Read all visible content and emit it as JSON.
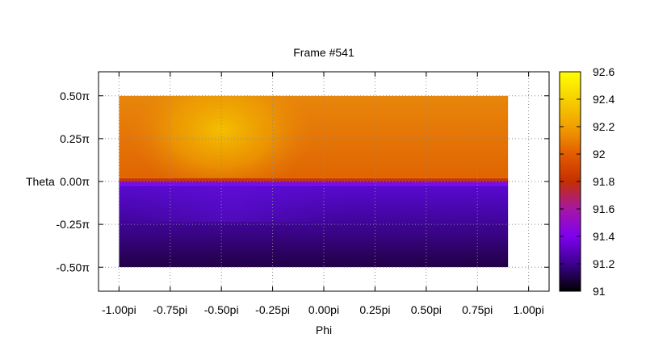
{
  "chart_data": {
    "type": "heatmap",
    "title": "Frame #541",
    "xlabel": "Phi",
    "ylabel": "Theta",
    "xlim": [
      -1.1,
      1.1
    ],
    "ylim": [
      -0.64,
      0.64
    ],
    "x_ticks": [
      {
        "value": -1.0,
        "label": "-1.00pi"
      },
      {
        "value": -0.75,
        "label": "-0.75pi"
      },
      {
        "value": -0.5,
        "label": "-0.50pi"
      },
      {
        "value": -0.25,
        "label": "-0.25pi"
      },
      {
        "value": 0.0,
        "label": "0.00pi"
      },
      {
        "value": 0.25,
        "label": "0.25pi"
      },
      {
        "value": 0.5,
        "label": "0.50pi"
      },
      {
        "value": 0.75,
        "label": "0.75pi"
      },
      {
        "value": 1.0,
        "label": "1.00pi"
      }
    ],
    "y_ticks": [
      {
        "value": 0.5,
        "label": "0.50π"
      },
      {
        "value": 0.25,
        "label": "0.25π"
      },
      {
        "value": 0.0,
        "label": "0.00π"
      },
      {
        "value": -0.25,
        "label": "-0.25π"
      },
      {
        "value": -0.5,
        "label": "-0.50π"
      }
    ],
    "grid": true,
    "data_extent": {
      "phi": [
        -1.0,
        0.9
      ],
      "theta": [
        -0.5,
        0.5
      ]
    },
    "regions": [
      {
        "theta": [
          0.02,
          0.5
        ],
        "phi": [
          -1.0,
          0.0
        ],
        "values": [
          92.2,
          92.45
        ],
        "peak_at": {
          "phi": -0.5,
          "theta": 0.3
        }
      },
      {
        "theta": [
          0.02,
          0.5
        ],
        "phi": [
          0.0,
          0.9
        ],
        "values": [
          92.2,
          92.25
        ]
      },
      {
        "theta": [
          -0.02,
          0.02
        ],
        "values": [
          91.8,
          92.0
        ]
      },
      {
        "theta": [
          -0.5,
          -0.02
        ],
        "values": [
          91.0,
          91.45
        ],
        "gradient": "darker toward -0.5"
      }
    ],
    "colorbar": {
      "range": [
        91,
        92.6
      ],
      "ticks": [
        {
          "value": 91,
          "label": "91"
        },
        {
          "value": 91.2,
          "label": "91.2"
        },
        {
          "value": 91.4,
          "label": "91.4"
        },
        {
          "value": 91.6,
          "label": "91.6"
        },
        {
          "value": 91.8,
          "label": "91.8"
        },
        {
          "value": 92,
          "label": "92"
        },
        {
          "value": 92.2,
          "label": "92.2"
        },
        {
          "value": 92.4,
          "label": "92.4"
        },
        {
          "value": 92.6,
          "label": "92.6"
        }
      ],
      "colormap": [
        "#000000",
        "#3c008e",
        "#7e00f0",
        "#a617a4",
        "#c42f00",
        "#e35c00",
        "#f0a000",
        "#f7d000",
        "#ffff00"
      ]
    }
  }
}
